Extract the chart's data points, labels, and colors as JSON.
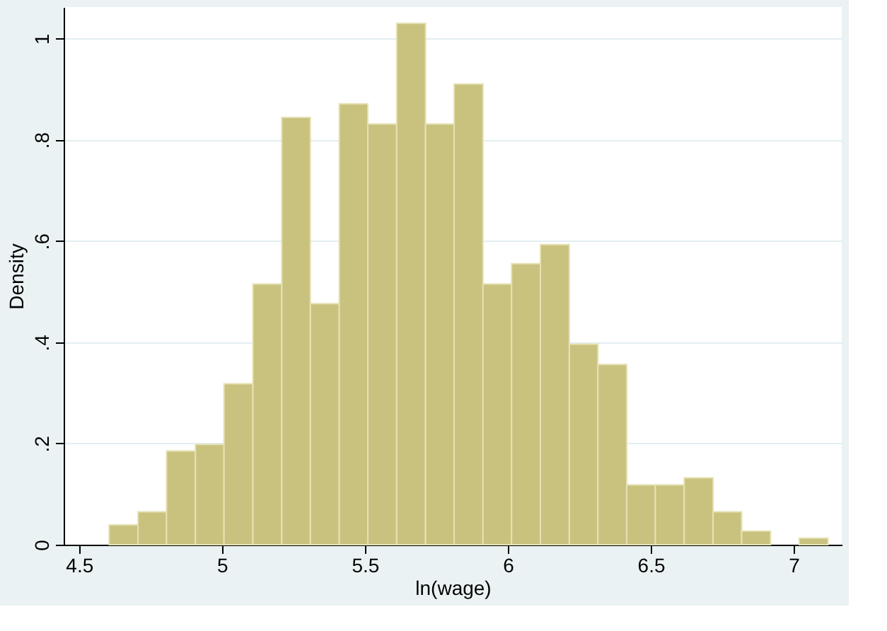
{
  "chart_data": {
    "type": "histogram",
    "xlabel": "ln(wage)",
    "ylabel": "Density",
    "bins": [
      4.605,
      4.706,
      4.806,
      4.907,
      5.007,
      5.108,
      5.209,
      5.309,
      5.41,
      5.51,
      5.611,
      5.712,
      5.812,
      5.913,
      6.013,
      6.114,
      6.215,
      6.315,
      6.416,
      6.516,
      6.617,
      6.718,
      6.818,
      6.919,
      7.019,
      7.12
    ],
    "values": [
      0.039,
      0.065,
      0.185,
      0.198,
      0.318,
      0.515,
      0.844,
      0.476,
      0.871,
      0.831,
      1.03,
      0.831,
      0.91,
      0.515,
      0.555,
      0.593,
      0.396,
      0.356,
      0.118,
      0.118,
      0.132,
      0.065,
      0.027,
      0,
      0.013
    ],
    "color": "#c9c27f",
    "xlim": [
      4.446,
      7.168
    ],
    "xticks": [
      4.5,
      5,
      5.5,
      6,
      6.5,
      7
    ],
    "ylim": [
      0,
      1.062
    ],
    "yticks": [
      0,
      {
        "value": 0.2,
        "label": ".2"
      },
      {
        "value": 0.4,
        "label": ".4"
      },
      {
        "value": 0.6,
        "label": ".6"
      },
      {
        "value": 0.8,
        "label": ".8"
      },
      1
    ],
    "grid": "y"
  }
}
